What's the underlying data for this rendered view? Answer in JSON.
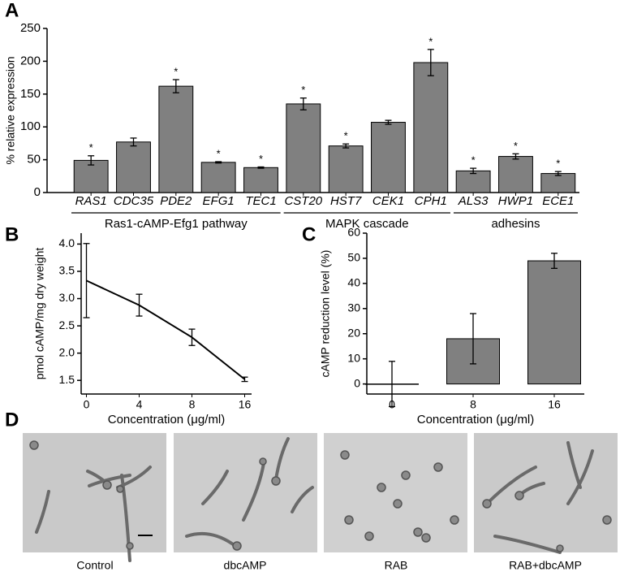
{
  "panel_labels": [
    "A",
    "B",
    "C",
    "D"
  ],
  "chart_data": [
    {
      "type": "bar",
      "ylabel": "% relative expression",
      "categories": [
        "RAS1",
        "CDC35",
        "PDE2",
        "EFG1",
        "TEC1",
        "CST20",
        "HST7",
        "CEK1",
        "CPH1",
        "ALS3",
        "HWP1",
        "ECE1"
      ],
      "values": [
        49,
        77,
        162,
        46,
        38,
        135,
        71,
        107,
        198,
        33,
        55,
        29
      ],
      "errors": [
        7,
        6,
        10,
        1,
        1,
        9,
        3,
        3,
        20,
        4,
        4,
        3
      ],
      "annotations": [
        "*",
        null,
        "*",
        "*",
        "*",
        "*",
        "*",
        null,
        "*",
        "*",
        "*",
        "*"
      ],
      "groups": [
        {
          "label": "Ras1-cAMP-Efg1 pathway",
          "members": [
            "RAS1",
            "CDC35",
            "PDE2",
            "EFG1",
            "TEC1"
          ]
        },
        {
          "label": "MAPK cascade",
          "members": [
            "CST20",
            "HST7",
            "CEK1",
            "CPH1"
          ]
        },
        {
          "label": "adhesins",
          "members": [
            "ALS3",
            "HWP1",
            "ECE1"
          ]
        }
      ],
      "color": "#808080",
      "ylim": [
        0,
        250
      ],
      "yticks": [
        0,
        50,
        100,
        150,
        200,
        250
      ]
    },
    {
      "type": "line",
      "xlabel": "Concentration (μg/ml)",
      "ylabel": "pmol cAMP/mg dry weight",
      "categories": [
        "0",
        "4",
        "8",
        "16"
      ],
      "values": [
        3.33,
        2.88,
        2.29,
        1.52
      ],
      "errors": [
        0.68,
        0.2,
        0.15,
        0.04
      ],
      "color": "#000000",
      "ylim": [
        1.25,
        4.2
      ],
      "yticks": [
        1.5,
        {
          "value": 2,
          "label": "2.0"
        },
        2.5,
        {
          "value": 3,
          "label": "3.0"
        },
        3.5,
        {
          "value": 4,
          "label": "4.0"
        }
      ]
    },
    {
      "type": "bar",
      "xlabel": "Concentration (μg/ml)",
      "ylabel": "cAMP reduction level (%)",
      "categories": [
        "0",
        "8",
        "16"
      ],
      "values": [
        0,
        18,
        49
      ],
      "errors": [
        9,
        10,
        3
      ],
      "color": "#808080",
      "ylim": [
        -4,
        60
      ],
      "yticks": [
        0,
        10,
        20,
        30,
        40,
        50,
        60
      ]
    }
  ],
  "images": {
    "captions": [
      "Control",
      "dbcAMP",
      "RAB",
      "RAB+dbcAMP"
    ]
  }
}
